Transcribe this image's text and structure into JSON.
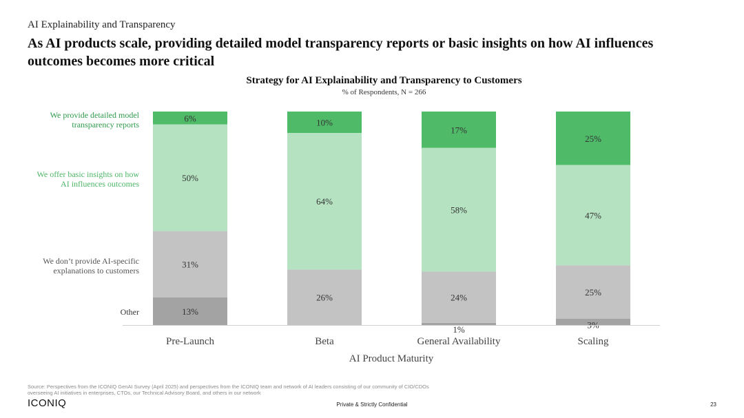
{
  "header": {
    "eyebrow": "AI Explainability and Transparency",
    "headline": "As AI products scale, providing detailed model transparency reports or basic insights on how AI influences outcomes becomes more critical"
  },
  "chart_data": {
    "type": "bar",
    "stacked": true,
    "title": "Strategy for AI Explainability and Transparency to Customers",
    "subtitle": "% of Respondents, N = 266",
    "xlabel": "AI Product Maturity",
    "ylabel": "",
    "ylim": [
      0,
      100
    ],
    "categories": [
      "Pre-Launch",
      "Beta",
      "General Availability",
      "Scaling"
    ],
    "series": [
      {
        "name": "Other",
        "values": [
          13,
          0,
          1,
          3
        ],
        "labels": [
          "13%",
          "",
          "1%",
          "3%"
        ],
        "color": "#a3a3a3",
        "legend_color": "#333333"
      },
      {
        "name": "We don’t provide AI-specific explanations to customers",
        "values": [
          31,
          26,
          24,
          25
        ],
        "labels": [
          "31%",
          "26%",
          "24%",
          "25%"
        ],
        "color": "#c3c3c3",
        "legend_color": "#555555"
      },
      {
        "name": "We offer basic insights on how AI influences outcomes",
        "values": [
          50,
          64,
          58,
          47
        ],
        "labels": [
          "50%",
          "64%",
          "58%",
          "47%"
        ],
        "color": "#b5e3c2",
        "legend_color": "#4cb566"
      },
      {
        "name": "We provide detailed model transparency reports",
        "values": [
          6,
          10,
          17,
          25
        ],
        "labels": [
          "6%",
          "10%",
          "17%",
          "25%"
        ],
        "color": "#4fba68",
        "legend_color": "#2d9a4b"
      }
    ],
    "legend_position": "left",
    "grid": false
  },
  "footer": {
    "source": "Source: Perspectives from the ICONIQ GenAI Survey (April 2025) and perspectives from the ICONIQ team and network of AI leaders consisting of our community of CIO/CDOs overseeing AI initiatives in enterprises, CTOs, our Technical Advisory Board, and others in our network",
    "logo": "ICONIQ",
    "confidential": "Private & Strictly Confidential",
    "page_number": "23"
  }
}
